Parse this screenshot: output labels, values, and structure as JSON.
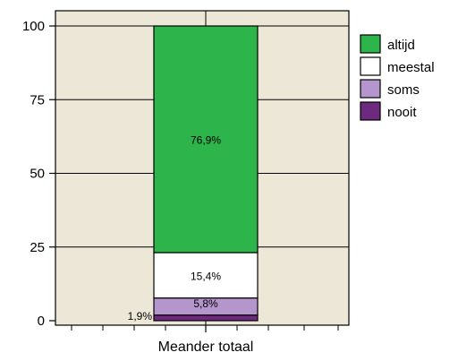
{
  "chart_data": {
    "type": "bar",
    "stacked": true,
    "categories": [
      "Meander totaal"
    ],
    "series": [
      {
        "name": "nooit",
        "values": [
          1.9
        ],
        "color": "#6e2a7e",
        "label": "1,9%"
      },
      {
        "name": "soms",
        "values": [
          5.8
        ],
        "color": "#b596cc",
        "label": "5,8%"
      },
      {
        "name": "meestal",
        "values": [
          15.4
        ],
        "color": "#ffffff",
        "label": "15,4%"
      },
      {
        "name": "altijd",
        "values": [
          76.9
        ],
        "color": "#2db44a",
        "label": "76,9%"
      }
    ],
    "legend_order": [
      "altijd",
      "meestal",
      "soms",
      "nooit"
    ],
    "legend_placement": "right",
    "yticks": [
      "0",
      "25",
      "50",
      "75",
      "100"
    ],
    "ylim": [
      0,
      100
    ],
    "grid": true,
    "plot_background": "#ede7d8",
    "title": "",
    "xlabel": "",
    "ylabel": ""
  }
}
